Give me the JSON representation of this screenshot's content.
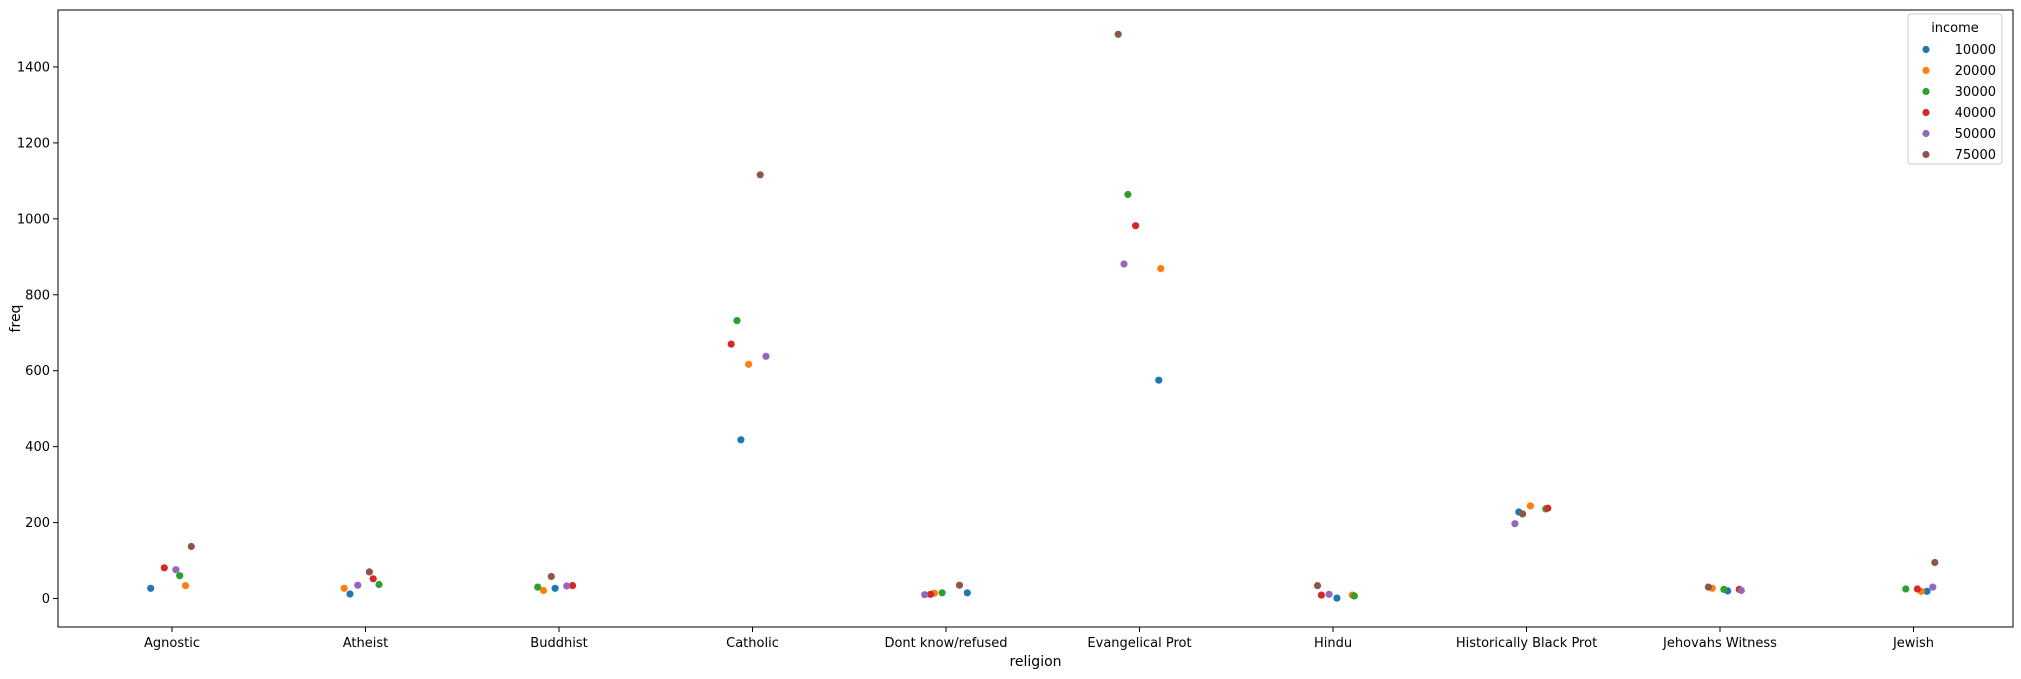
{
  "chart_data": {
    "type": "scatter",
    "title": "",
    "xlabel": "religion",
    "ylabel": "freq",
    "ylim": [
      -75,
      1550
    ],
    "yticks": [
      0,
      200,
      400,
      600,
      800,
      1000,
      1200,
      1400
    ],
    "grid": false,
    "legend": {
      "title": "income",
      "placement": "top-right"
    },
    "categories": [
      "Agnostic",
      "Atheist",
      "Buddhist",
      "Catholic",
      "Dont know/refused",
      "Evangelical Prot",
      "Hindu",
      "Historically Black Prot",
      "Jehovahs Witness",
      "Jewish"
    ],
    "series": [
      {
        "name": "10000",
        "color": "#1f77b4",
        "values": [
          27,
          12,
          27,
          418,
          15,
          575,
          1,
          228,
          20,
          19
        ]
      },
      {
        "name": "20000",
        "color": "#ff7f0e",
        "values": [
          34,
          27,
          21,
          617,
          14,
          869,
          9,
          244,
          27,
          19
        ]
      },
      {
        "name": "30000",
        "color": "#2ca02c",
        "values": [
          60,
          37,
          30,
          732,
          15,
          1064,
          7,
          236,
          24,
          25
        ]
      },
      {
        "name": "40000",
        "color": "#d62728",
        "values": [
          81,
          52,
          34,
          670,
          11,
          982,
          9,
          238,
          24,
          25
        ]
      },
      {
        "name": "50000",
        "color": "#9467bd",
        "values": [
          76,
          35,
          33,
          638,
          10,
          881,
          11,
          197,
          21,
          30
        ]
      },
      {
        "name": "75000",
        "color": "#8c564b",
        "values": [
          137,
          70,
          58,
          1116,
          35,
          1486,
          34,
          223,
          30,
          95
        ]
      }
    ]
  }
}
